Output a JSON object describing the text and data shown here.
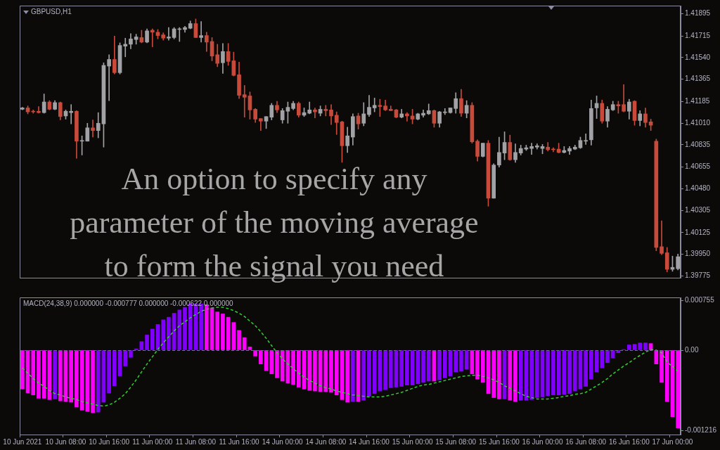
{
  "chart_data": [
    {
      "type": "candlestick",
      "title": "GBPUSD,H1",
      "categories": [
        null,
        null,
        null,
        null,
        null,
        null,
        null,
        null,
        null,
        null,
        null,
        null,
        null,
        null,
        null,
        null,
        null,
        null,
        null,
        null,
        null,
        null,
        null,
        null,
        null,
        null,
        null,
        null,
        null,
        null,
        null,
        null,
        null,
        null,
        null,
        null,
        null,
        null,
        null,
        null,
        null,
        null,
        null,
        null,
        null,
        null,
        null,
        null,
        null,
        null,
        null,
        null,
        null,
        null,
        null,
        null,
        null,
        null,
        null,
        null,
        null,
        null,
        null,
        null,
        null,
        null,
        null,
        null,
        null,
        null,
        null,
        null,
        null,
        null,
        null,
        null,
        null,
        null,
        null,
        null,
        null,
        null,
        null,
        null,
        null,
        null,
        null,
        null,
        null,
        null,
        null,
        null,
        null,
        null,
        null,
        null,
        null,
        null,
        null,
        null,
        null,
        null,
        null,
        null,
        null,
        null,
        null,
        null,
        null,
        null,
        null,
        null,
        null,
        null,
        null,
        null,
        null,
        null,
        null,
        null,
        null,
        null
      ],
      "ohlc": [
        [
          1.41122,
          1.41138,
          1.41117,
          1.41133
        ],
        [
          1.41133,
          1.41149,
          1.41085,
          1.41101
        ],
        [
          1.41106,
          1.41117,
          1.4109,
          1.41101
        ],
        [
          1.41106,
          1.41144,
          1.4109,
          1.41095
        ],
        [
          1.41095,
          1.41246,
          1.4109,
          1.41181
        ],
        [
          1.41181,
          1.41192,
          1.41117,
          1.41122
        ],
        [
          1.41122,
          1.41192,
          1.41117,
          1.41176
        ],
        [
          1.41176,
          1.41181,
          1.41036,
          1.41063
        ],
        [
          1.41068,
          1.41117,
          1.41042,
          1.41106
        ],
        [
          1.41095,
          1.4116,
          1.41004,
          1.41106
        ],
        [
          1.41106,
          1.41111,
          1.40725,
          1.40864
        ],
        [
          1.40864,
          1.40907,
          1.40752,
          1.4087
        ],
        [
          1.40864,
          1.41009,
          1.40864,
          1.40972
        ],
        [
          1.40972,
          1.41036,
          1.40897,
          1.4095
        ],
        [
          1.4095,
          1.41095,
          1.40891,
          1.41009
        ],
        [
          1.41004,
          1.41498,
          1.40816,
          1.41477
        ],
        [
          1.41471,
          1.41563,
          1.41192,
          1.41525
        ],
        [
          1.41525,
          1.41713,
          1.41407,
          1.41418
        ],
        [
          1.41418,
          1.41659,
          1.41407,
          1.41638
        ],
        [
          1.41632,
          1.41697,
          1.41546,
          1.41648
        ],
        [
          1.41648,
          1.41734,
          1.41611,
          1.41691
        ],
        [
          1.41686,
          1.41729,
          1.41648,
          1.41707
        ],
        [
          1.41702,
          1.41761,
          1.41659,
          1.41665
        ],
        [
          1.41665,
          1.41772,
          1.41659,
          1.41756
        ],
        [
          1.41761,
          1.41772,
          1.41627,
          1.41745
        ],
        [
          1.41745,
          1.41767,
          1.41691,
          1.41718
        ],
        [
          1.41724,
          1.4174,
          1.41681,
          1.41697
        ],
        [
          1.41697,
          1.41783,
          1.41681,
          1.41707
        ],
        [
          1.41702,
          1.41783,
          1.41691,
          1.41772
        ],
        [
          1.41767,
          1.41783,
          1.4167,
          1.41772
        ],
        [
          1.41767,
          1.41793,
          1.41745,
          1.41783
        ],
        [
          1.41777,
          1.41836,
          1.41772,
          1.41815
        ],
        [
          1.41815,
          1.41852,
          1.41702,
          1.41702
        ],
        [
          1.41702,
          1.41831,
          1.41665,
          1.41718
        ],
        [
          1.41718,
          1.41745,
          1.41589,
          1.41665
        ],
        [
          1.4167,
          1.41702,
          1.41514,
          1.41552
        ],
        [
          1.41563,
          1.41648,
          1.41466,
          1.41493
        ],
        [
          1.41498,
          1.41654,
          1.41412,
          1.41589
        ],
        [
          1.41589,
          1.41654,
          1.41477,
          1.41509
        ],
        [
          1.41514,
          1.41584,
          1.41391,
          1.41396
        ],
        [
          1.41401,
          1.41503,
          1.41208,
          1.41235
        ],
        [
          1.4124,
          1.41315,
          1.41058,
          1.41219
        ],
        [
          1.4123,
          1.41262,
          1.41042,
          1.41117
        ],
        [
          1.41122,
          1.41128,
          1.41015,
          1.41042
        ],
        [
          1.41047,
          1.41047,
          1.4095,
          1.41026
        ],
        [
          1.41026,
          1.41063,
          1.40966,
          1.41063
        ],
        [
          1.41058,
          1.4117,
          1.41036,
          1.41154
        ],
        [
          1.41154,
          1.41187,
          1.41095,
          1.41117
        ],
        [
          1.41036,
          1.41128,
          1.41009,
          1.41111
        ],
        [
          1.41106,
          1.41181,
          1.41009,
          1.41138
        ],
        [
          1.41128,
          1.41187,
          1.41117,
          1.4117
        ],
        [
          1.4117,
          1.41181,
          1.41058,
          1.41074
        ],
        [
          1.41074,
          1.41133,
          1.41063,
          1.41095
        ],
        [
          1.4109,
          1.41181,
          1.41085,
          1.41117
        ],
        [
          1.41117,
          1.41133,
          1.41052,
          1.41101
        ],
        [
          1.4109,
          1.41149,
          1.41068,
          1.41122
        ],
        [
          1.41122,
          1.41154,
          1.41068,
          1.41111
        ],
        [
          1.41117,
          1.4116,
          1.40999,
          1.41068
        ],
        [
          1.41074,
          1.41101,
          1.40918,
          1.41015
        ],
        [
          1.4102,
          1.41026,
          1.40693,
          1.40827
        ],
        [
          1.40827,
          1.40977,
          1.40773,
          1.40907
        ],
        [
          1.40897,
          1.41085,
          1.40832,
          1.41063
        ],
        [
          1.41068,
          1.4109,
          1.40961,
          1.41004
        ],
        [
          1.41009,
          1.41176,
          1.40988,
          1.41085
        ],
        [
          1.41079,
          1.41235,
          1.41063,
          1.41138
        ],
        [
          1.41133,
          1.41213,
          1.41101,
          1.41154
        ],
        [
          1.41154,
          1.41203,
          1.41063,
          1.41144
        ],
        [
          1.41149,
          1.41197,
          1.41111,
          1.41117
        ],
        [
          1.41122,
          1.41149,
          1.41111,
          1.41111
        ],
        [
          1.41117,
          1.41122,
          1.41052,
          1.41058
        ],
        [
          1.41058,
          1.41122,
          1.41052,
          1.41085
        ],
        [
          1.41085,
          1.41095,
          1.41026,
          1.41068
        ],
        [
          1.41068,
          1.41122,
          1.41004,
          1.41042
        ],
        [
          1.41042,
          1.4109,
          1.41036,
          1.41085
        ],
        [
          1.41074,
          1.41117,
          1.41058,
          1.4109
        ],
        [
          1.41085,
          1.41165,
          1.41079,
          1.41111
        ],
        [
          1.41111,
          1.41117,
          1.40977,
          1.41009
        ],
        [
          1.41009,
          1.41106,
          1.40977,
          1.41101
        ],
        [
          1.41095,
          1.41128,
          1.41079,
          1.41101
        ],
        [
          1.41095,
          1.41133,
          1.4109,
          1.41133
        ],
        [
          1.41128,
          1.41256,
          1.4109,
          1.41208
        ],
        [
          1.41208,
          1.41283,
          1.41063,
          1.4109
        ],
        [
          1.4109,
          1.41192,
          1.41052,
          1.41154
        ],
        [
          1.41154,
          1.41176,
          1.40848,
          1.40859
        ],
        [
          1.40864,
          1.40875,
          1.40703,
          1.40741
        ],
        [
          1.40741,
          1.40848,
          1.40736,
          1.40848
        ],
        [
          1.40848,
          1.4087,
          1.40338,
          1.40403
        ],
        [
          1.40403,
          1.40682,
          1.40403,
          1.40671
        ],
        [
          1.40671,
          1.40897,
          1.40655,
          1.40773
        ],
        [
          1.40768,
          1.4094,
          1.40714,
          1.40854
        ],
        [
          1.40854,
          1.40913,
          1.40709,
          1.40714
        ],
        [
          1.40714,
          1.40843,
          1.40693,
          1.40773
        ],
        [
          1.40768,
          1.40832,
          1.40752,
          1.40805
        ],
        [
          1.408,
          1.40832,
          1.40789,
          1.40811
        ],
        [
          1.40805,
          1.40848,
          1.40757,
          1.40821
        ],
        [
          1.40816,
          1.40843,
          1.408,
          1.40827
        ],
        [
          1.40805,
          1.40838,
          1.40762,
          1.40821
        ],
        [
          1.40816,
          1.40854,
          1.40784,
          1.40795
        ],
        [
          1.408,
          1.40811,
          1.40778,
          1.40795
        ],
        [
          1.408,
          1.40848,
          1.40768,
          1.40773
        ],
        [
          1.40773,
          1.40821,
          1.40768,
          1.40789
        ],
        [
          1.40784,
          1.40821,
          1.40757,
          1.40805
        ],
        [
          1.408,
          1.40832,
          1.40795,
          1.40816
        ],
        [
          1.40811,
          1.40897,
          1.40805,
          1.4087
        ],
        [
          1.40864,
          1.40923,
          1.40838,
          1.4087
        ],
        [
          1.40875,
          1.41197,
          1.40832,
          1.41128
        ],
        [
          1.41133,
          1.4123,
          1.41047,
          1.4117
        ],
        [
          1.4117,
          1.41197,
          1.41009,
          1.41026
        ],
        [
          1.41026,
          1.41144,
          1.40977,
          1.41122
        ],
        [
          1.41117,
          1.41187,
          1.41111,
          1.4116
        ],
        [
          1.4116,
          1.41187,
          1.4109,
          1.41149
        ],
        [
          1.4116,
          1.41321,
          1.41101,
          1.41106
        ],
        [
          1.41106,
          1.41203,
          1.41042,
          1.41181
        ],
        [
          1.41187,
          1.41192,
          1.40993,
          1.41031
        ],
        [
          1.41031,
          1.41111,
          1.40988,
          1.41085
        ],
        [
          1.41085,
          1.41133,
          1.40977,
          1.41015
        ],
        [
          1.4102,
          1.41042,
          1.4095,
          1.40993
        ],
        [
          1.40864,
          1.40881,
          1.39978,
          1.40005
        ],
        [
          1.40011,
          1.4022,
          1.39946,
          1.39957
        ],
        [
          1.39962,
          1.40005,
          1.39807,
          1.39828
        ],
        [
          1.39828,
          1.39935,
          1.39812,
          1.39844
        ],
        [
          1.39833,
          1.39952,
          1.39823,
          1.3993
        ]
      ],
      "colors": [
        "#a0a2a5",
        "#c74a3a",
        "#c74a3a",
        "#c74a3a",
        "#a0a2a5",
        "#c74a3a",
        "#a0a2a5",
        "#c74a3a",
        "#a0a2a5",
        "#a0a2a5",
        "#c74a3a",
        "#a0a2a5",
        "#a0a2a5",
        "#c74a3a",
        "#a0a2a5",
        "#a0a2a5",
        "#a0a2a5",
        "#c74a3a",
        "#a0a2a5",
        "#a0a2a5",
        "#a0a2a5",
        "#a0a2a5",
        "#c74a3a",
        "#a0a2a5",
        "#c74a3a",
        "#c74a3a",
        "#c74a3a",
        "#a0a2a5",
        "#a0a2a5",
        "#a0a2a5",
        "#a0a2a5",
        "#a0a2a5",
        "#c74a3a",
        "#a0a2a5",
        "#c74a3a",
        "#c74a3a",
        "#c74a3a",
        "#a0a2a5",
        "#c74a3a",
        "#c74a3a",
        "#c74a3a",
        "#c74a3a",
        "#c74a3a",
        "#c74a3a",
        "#c74a3a",
        "#a0a2a5",
        "#a0a2a5",
        "#c74a3a",
        "#a0a2a5",
        "#a0a2a5",
        "#a0a2a5",
        "#c74a3a",
        "#a0a2a5",
        "#a0a2a5",
        "#c74a3a",
        "#a0a2a5",
        "#c74a3a",
        "#c74a3a",
        "#c74a3a",
        "#c74a3a",
        "#a0a2a5",
        "#a0a2a5",
        "#c74a3a",
        "#a0a2a5",
        "#a0a2a5",
        "#a0a2a5",
        "#c74a3a",
        "#c74a3a",
        "#c74a3a",
        "#c74a3a",
        "#a0a2a5",
        "#c74a3a",
        "#c74a3a",
        "#a0a2a5",
        "#a0a2a5",
        "#a0a2a5",
        "#c74a3a",
        "#a0a2a5",
        "#a0a2a5",
        "#a0a2a5",
        "#a0a2a5",
        "#c74a3a",
        "#a0a2a5",
        "#c74a3a",
        "#c74a3a",
        "#a0a2a5",
        "#c74a3a",
        "#a0a2a5",
        "#a0a2a5",
        "#a0a2a5",
        "#c74a3a",
        "#a0a2a5",
        "#a0a2a5",
        "#a0a2a5",
        "#a0a2a5",
        "#a0a2a5",
        "#a0a2a5",
        "#c74a3a",
        "#c74a3a",
        "#c74a3a",
        "#a0a2a5",
        "#a0a2a5",
        "#a0a2a5",
        "#a0a2a5",
        "#a0a2a5",
        "#a0a2a5",
        "#a0a2a5",
        "#c74a3a",
        "#a0a2a5",
        "#a0a2a5",
        "#c74a3a",
        "#c74a3a",
        "#a0a2a5",
        "#c74a3a",
        "#a0a2a5",
        "#c74a3a",
        "#c74a3a",
        "#c74a3a",
        "#c74a3a",
        "#c74a3a",
        "#a0a2a5",
        "#a0a2a5"
      ],
      "ylim": [
        1.3976,
        1.4196
      ],
      "yticks": [
        1.41895,
        1.41715,
        {
          "value": 1.4154,
          "label": "1.41540"
        },
        1.41365,
        1.41185,
        {
          "value": 1.4101,
          "label": "1.41010"
        },
        1.40835,
        1.40655,
        {
          "value": 1.4048,
          "label": "1.40480"
        },
        1.40305,
        1.40125,
        {
          "value": 1.3995,
          "label": "1.39950"
        },
        1.39775
      ],
      "annotations": [
        "An option to specify any parameter of the moving average to form the signal you need"
      ]
    },
    {
      "type": "bar",
      "title": "MACD(24,38,9) 0.000000 -0.000777 0.000000 -0.000622 0.000000",
      "categories": [
        "10 Jun 2021",
        null,
        null,
        null,
        null,
        null,
        null,
        null,
        "10 Jun 08:00",
        null,
        null,
        null,
        null,
        null,
        null,
        null,
        "10 Jun 16:00",
        null,
        null,
        null,
        null,
        null,
        null,
        null,
        "11 Jun 00:00",
        null,
        null,
        null,
        null,
        null,
        null,
        null,
        "11 Jun 08:00",
        null,
        null,
        null,
        null,
        null,
        null,
        null,
        "11 Jun 16:00",
        null,
        null,
        null,
        null,
        null,
        null,
        null,
        "14 Jun 00:00",
        null,
        null,
        null,
        null,
        null,
        null,
        null,
        "14 Jun 08:00",
        null,
        null,
        null,
        null,
        null,
        null,
        null,
        "14 Jun 16:00",
        null,
        null,
        null,
        null,
        null,
        null,
        null,
        "15 Jun 00:00",
        null,
        null,
        null,
        null,
        null,
        null,
        null,
        "15 Jun 08:00",
        null,
        null,
        null,
        null,
        null,
        null,
        null,
        "15 Jun 16:00",
        null,
        null,
        null,
        null,
        null,
        null,
        null,
        "16 Jun 00:00",
        null,
        null,
        null,
        null,
        null,
        null,
        null,
        "16 Jun 08:00",
        null,
        null,
        null,
        null,
        null,
        null,
        null,
        "16 Jun 16:00",
        null,
        null,
        null,
        null,
        null,
        null,
        null,
        "17 Jun 00:00",
        null
      ],
      "series": [
        {
          "type": "bar",
          "values": [
            -0.00059,
            -0.00065,
            -0.00068,
            -0.00073,
            -0.00073,
            -0.00075,
            -0.00074,
            -0.00077,
            -0.00078,
            -0.00079,
            -0.00086,
            -0.00091,
            -0.00093,
            -0.00095,
            -0.00094,
            -0.00079,
            -0.00065,
            -0.00054,
            -0.00039,
            -0.00024,
            -0.00011,
            2e-05,
            0.00013,
            0.00023,
            0.00032,
            0.00039,
            0.00046,
            0.0005,
            0.00056,
            0.00061,
            0.00065,
            0.0007,
            0.0007,
            0.0007,
            0.00069,
            0.00064,
            0.00058,
            0.00055,
            0.0005,
            0.00042,
            0.0003,
            0.00019,
            5e-05,
            -9e-05,
            -0.00021,
            -0.00031,
            -0.00036,
            -0.00042,
            -0.00047,
            -0.0005,
            -0.00052,
            -0.00056,
            -0.00059,
            -0.00061,
            -0.00062,
            -0.00063,
            -0.00063,
            -0.00064,
            -0.00068,
            -0.00075,
            -0.00079,
            -0.00078,
            -0.00078,
            -0.00076,
            -0.0007,
            -0.00066,
            -0.00062,
            -0.0006,
            -0.00057,
            -0.00056,
            -0.00055,
            -0.00053,
            -0.00053,
            -0.00051,
            -0.00049,
            -0.00047,
            -0.00047,
            -0.00045,
            -0.00042,
            -0.00039,
            -0.00033,
            -0.00032,
            -0.00029,
            -0.00036,
            -0.00044,
            -0.00049,
            -0.00066,
            -0.00072,
            -0.00074,
            -0.00074,
            -0.00076,
            -0.00078,
            -0.00076,
            -0.00076,
            -0.00075,
            -0.00072,
            -0.00071,
            -0.00069,
            -0.00068,
            -0.00068,
            -0.00067,
            -0.00066,
            -0.00062,
            -0.00059,
            -0.00055,
            -0.00044,
            -0.00033,
            -0.00027,
            -0.00019,
            -0.00012,
            -4e-05,
            1e-05,
            8e-05,
            9e-05,
            0.00011,
            0.00011,
            0.0001,
            -0.00021,
            -0.00049,
            -0.00078,
            -0.00101,
            -0.00118
          ],
          "colors": [
            "#ff00ff",
            "#ff00ff",
            "#ff00ff",
            "#ff00ff",
            "#ff00ff",
            "#ff00ff",
            "#8000ff",
            "#ff00ff",
            "#ff00ff",
            "#ff00ff",
            "#ff00ff",
            "#ff00ff",
            "#ff00ff",
            "#ff00ff",
            "#8000ff",
            "#8000ff",
            "#8000ff",
            "#8000ff",
            "#8000ff",
            "#8000ff",
            "#8000ff",
            "#8000ff",
            "#8000ff",
            "#8000ff",
            "#8000ff",
            "#8000ff",
            "#8000ff",
            "#8000ff",
            "#8000ff",
            "#8000ff",
            "#8000ff",
            "#8000ff",
            "#8000ff",
            "#8000ff",
            "#ff00ff",
            "#ff00ff",
            "#ff00ff",
            "#ff00ff",
            "#ff00ff",
            "#ff00ff",
            "#ff00ff",
            "#ff00ff",
            "#ff00ff",
            "#ff00ff",
            "#ff00ff",
            "#ff00ff",
            "#ff00ff",
            "#ff00ff",
            "#ff00ff",
            "#ff00ff",
            "#ff00ff",
            "#ff00ff",
            "#ff00ff",
            "#ff00ff",
            "#ff00ff",
            "#ff00ff",
            "#ff00ff",
            "#ff00ff",
            "#ff00ff",
            "#ff00ff",
            "#ff00ff",
            "#8000ff",
            "#ff00ff",
            "#8000ff",
            "#8000ff",
            "#8000ff",
            "#8000ff",
            "#8000ff",
            "#8000ff",
            "#8000ff",
            "#8000ff",
            "#8000ff",
            "#8000ff",
            "#8000ff",
            "#8000ff",
            "#8000ff",
            "#ff00ff",
            "#8000ff",
            "#8000ff",
            "#8000ff",
            "#8000ff",
            "#8000ff",
            "#8000ff",
            "#ff00ff",
            "#ff00ff",
            "#ff00ff",
            "#ff00ff",
            "#ff00ff",
            "#ff00ff",
            "#8000ff",
            "#ff00ff",
            "#ff00ff",
            "#8000ff",
            "#8000ff",
            "#8000ff",
            "#8000ff",
            "#8000ff",
            "#8000ff",
            "#8000ff",
            "#8000ff",
            "#8000ff",
            "#8000ff",
            "#8000ff",
            "#8000ff",
            "#8000ff",
            "#8000ff",
            "#8000ff",
            "#8000ff",
            "#8000ff",
            "#8000ff",
            "#8000ff",
            "#8000ff",
            "#8000ff",
            "#8000ff",
            "#8000ff",
            "#8000ff",
            "#ff00ff",
            "#ff00ff",
            "#ff00ff",
            "#ff00ff",
            "#ff00ff",
            "#ff00ff"
          ]
        },
        {
          "type": "line",
          "color": "#32cd32",
          "line_style": "dashed",
          "values": [
            -0.00027,
            -0.00035,
            -0.00043,
            -0.0005,
            -0.00055,
            -0.00061,
            -0.00066,
            -0.00068,
            -0.00071,
            -0.00073,
            -0.00075,
            -0.00078,
            -0.0008,
            -0.00082,
            -0.00084,
            -0.00085,
            -0.00083,
            -0.00079,
            -0.00073,
            -0.00066,
            -0.00056,
            -0.00045,
            -0.00033,
            -0.00021,
            -0.0001,
            1e-05,
            0.00011,
            0.0002,
            0.00029,
            0.00037,
            0.00043,
            0.00049,
            0.00054,
            0.00059,
            0.00062,
            0.00064,
            0.00065,
            0.00065,
            0.00063,
            0.0006,
            0.00056,
            0.00051,
            0.00044,
            0.00037,
            0.00028,
            0.00018,
            7e-05,
            -4e-05,
            -0.00013,
            -0.00021,
            -0.00028,
            -0.00035,
            -0.00041,
            -0.00046,
            -0.0005,
            -0.00054,
            -0.00057,
            -0.00059,
            -0.00062,
            -0.00064,
            -0.00066,
            -0.00068,
            -0.00069,
            -0.0007,
            -0.00071,
            -0.00071,
            -0.00071,
            -0.0007,
            -0.00068,
            -0.00066,
            -0.00064,
            -0.00061,
            -0.00058,
            -0.00055,
            -0.00053,
            -0.00052,
            -0.0005,
            -0.00048,
            -0.00046,
            -0.00044,
            -0.00042,
            -0.0004,
            -0.00039,
            -0.00038,
            -0.00038,
            -0.0004,
            -0.00042,
            -0.00045,
            -0.00049,
            -0.00054,
            -0.00058,
            -0.00062,
            -0.00066,
            -0.0007,
            -0.00072,
            -0.00074,
            -0.00074,
            -0.00074,
            -0.00073,
            -0.00072,
            -0.0007,
            -0.00069,
            -0.00067,
            -0.00066,
            -0.00064,
            -0.00059,
            -0.00054,
            -0.00049,
            -0.00043,
            -0.00036,
            -0.0003,
            -0.00024,
            -0.00019,
            -0.00013,
            -8e-05,
            -3e-05,
            1e-05,
            0,
            -4e-05,
            -0.00018,
            -0.00025,
            -0.00032
          ]
        }
      ],
      "ylim": [
        -0.00128,
        0.0008
      ],
      "yticks": [
        0.000755,
        {
          "value": 0,
          "label": "0.00"
        },
        -0.001216
      ],
      "ref_lines": [
        {
          "axis": "y",
          "value": 0,
          "color": "#6a6a88",
          "line_style": "dashed"
        }
      ]
    }
  ]
}
